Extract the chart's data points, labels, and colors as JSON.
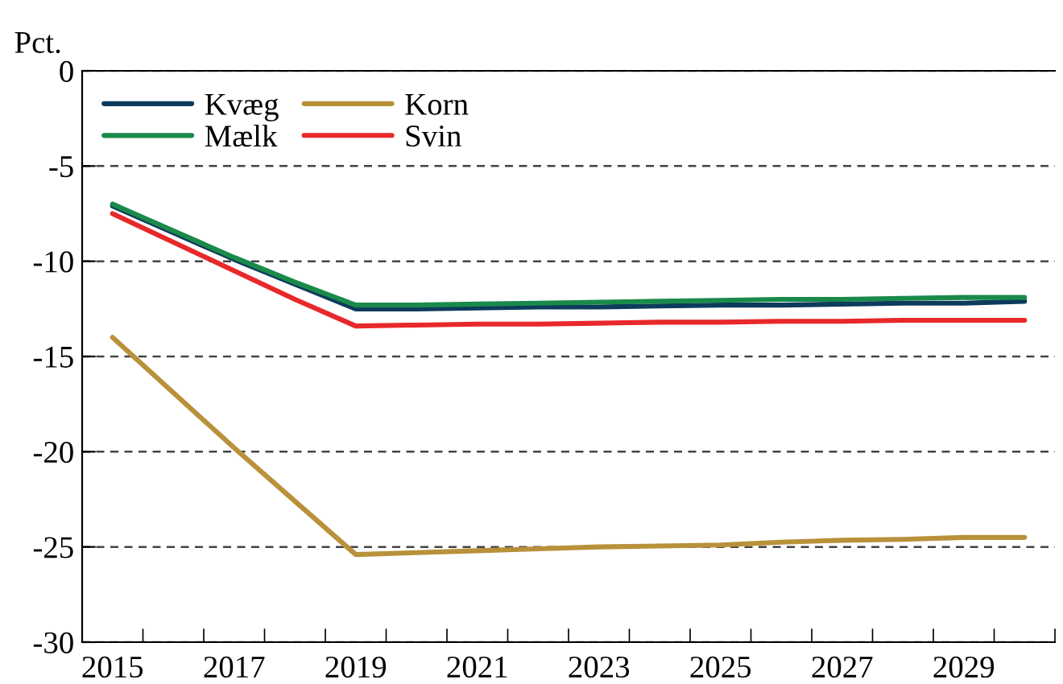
{
  "chart_data": {
    "type": "line",
    "ylabel": "Pct.",
    "categories": [
      "2015",
      null,
      "2017",
      null,
      "2019",
      null,
      "2021",
      null,
      "2023",
      null,
      "2025",
      null,
      "2027",
      null,
      "2029",
      null
    ],
    "series": [
      {
        "name": "Kvæg",
        "color": "#0d3b5c",
        "values": [
          -7.1,
          -8.5,
          -9.9,
          -11.2,
          -12.5,
          -12.5,
          -12.45,
          -12.4,
          -12.4,
          -12.35,
          -12.3,
          -12.3,
          -12.25,
          -12.2,
          -12.2,
          -12.1
        ]
      },
      {
        "name": "Mælk",
        "color": "#1a8a4a",
        "values": [
          -7.0,
          -8.4,
          -9.8,
          -11.1,
          -12.3,
          -12.3,
          -12.25,
          -12.2,
          -12.15,
          -12.1,
          -12.05,
          -12.0,
          -12.0,
          -11.95,
          -11.9,
          -11.9
        ]
      },
      {
        "name": "Korn",
        "color": "#b8913a",
        "values": [
          -14.0,
          -16.9,
          -19.8,
          -22.6,
          -25.4,
          -25.3,
          -25.2,
          -25.1,
          -25.0,
          -24.95,
          -24.9,
          -24.75,
          -24.65,
          -24.6,
          -24.5,
          -24.5
        ]
      },
      {
        "name": "Svin",
        "color": "#e8282a",
        "values": [
          -7.5,
          -9.0,
          -10.5,
          -12.0,
          -13.4,
          -13.35,
          -13.3,
          -13.3,
          -13.25,
          -13.2,
          -13.2,
          -13.15,
          -13.15,
          -13.1,
          -13.1,
          -13.1
        ]
      }
    ],
    "ylim": [
      -30,
      0
    ],
    "yticks": [
      -30,
      -25,
      -20,
      -15,
      -10,
      -5,
      0
    ],
    "grid": "y",
    "legend": "top left",
    "marker": "none",
    "line_style": "solid"
  }
}
